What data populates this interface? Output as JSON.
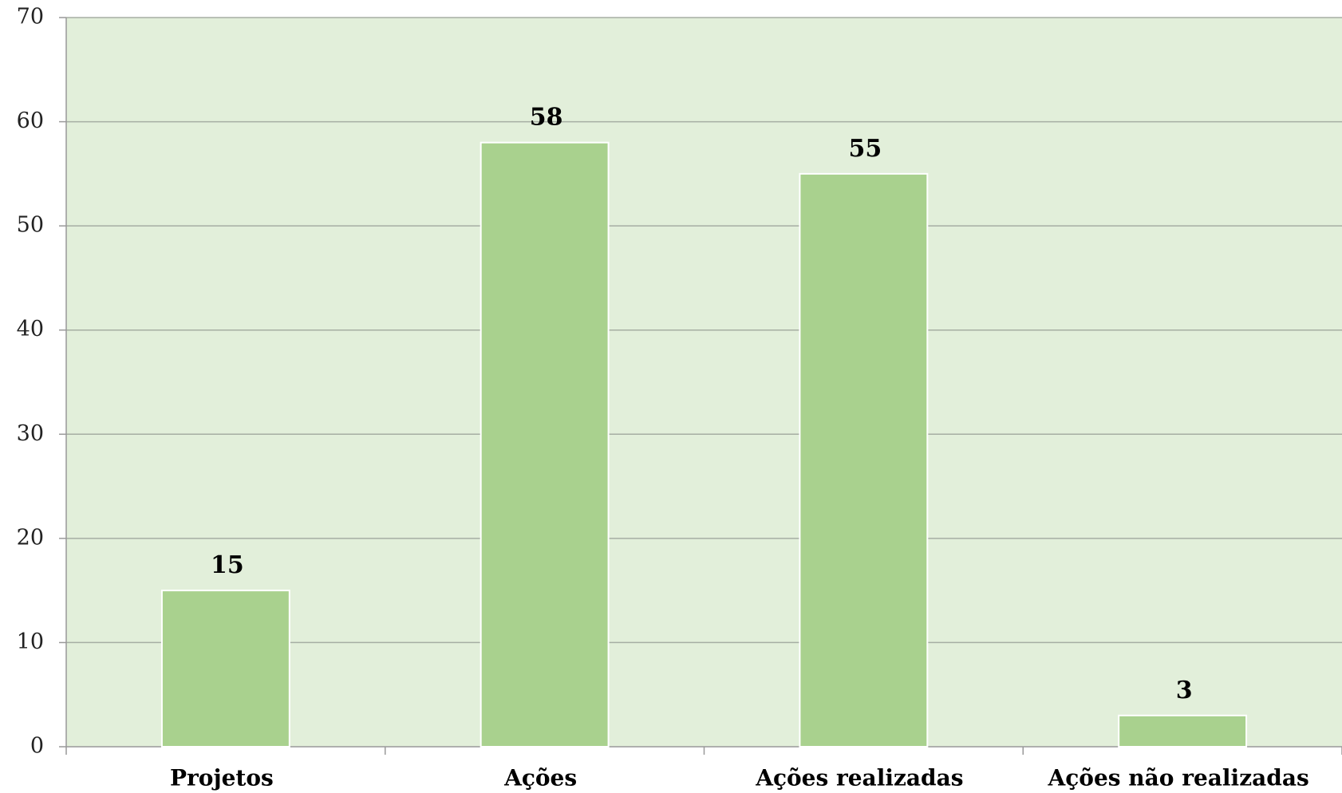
{
  "chart_data": {
    "type": "bar",
    "categories": [
      "Projetos",
      "Ações",
      "Ações realizadas",
      "Ações não realizadas"
    ],
    "values": [
      15,
      58,
      55,
      3
    ],
    "color": "#a9d18e",
    "ylim": [
      0,
      70
    ],
    "yticks": [
      0,
      10,
      20,
      30,
      40,
      50,
      60,
      70
    ],
    "grid": true
  }
}
